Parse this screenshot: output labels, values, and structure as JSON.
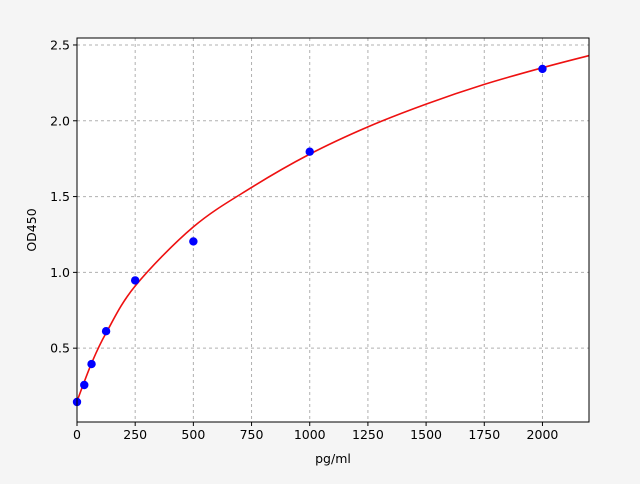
{
  "chart_data": {
    "type": "scatter",
    "title": "",
    "xlabel": "pg/ml",
    "ylabel": "OD450",
    "xlim": [
      0,
      2200
    ],
    "ylim": [
      0.013,
      2.546
    ],
    "xticks": [
      0,
      250,
      500,
      750,
      1000,
      1250,
      1500,
      1750,
      2000
    ],
    "xtick_labels": [
      "0",
      "250",
      "500",
      "750",
      "1000",
      "1250",
      "1500",
      "1750",
      "2000"
    ],
    "yticks": [
      0.5,
      1.0,
      1.5,
      2.0,
      2.5
    ],
    "ytick_labels": [
      "0.5",
      "1.0",
      "1.5",
      "2.0",
      "2.5"
    ],
    "grid": true,
    "series": [
      {
        "type": "scatter",
        "color": "#0000ff",
        "x": [
          0,
          31.25,
          62.5,
          125,
          250,
          500,
          1000,
          2000
        ],
        "y": [
          0.145,
          0.257,
          0.395,
          0.612,
          0.947,
          1.204,
          1.796,
          2.342
        ]
      },
      {
        "type": "line",
        "color": "#ee1111",
        "x": [
          0,
          62.5,
          125,
          250,
          500,
          750,
          1000,
          1250,
          1500,
          1750,
          2000,
          2200
        ],
        "y": [
          0.15,
          0.4,
          0.6,
          0.91,
          1.3,
          1.56,
          1.78,
          1.96,
          2.11,
          2.24,
          2.35,
          2.43
        ]
      }
    ]
  }
}
